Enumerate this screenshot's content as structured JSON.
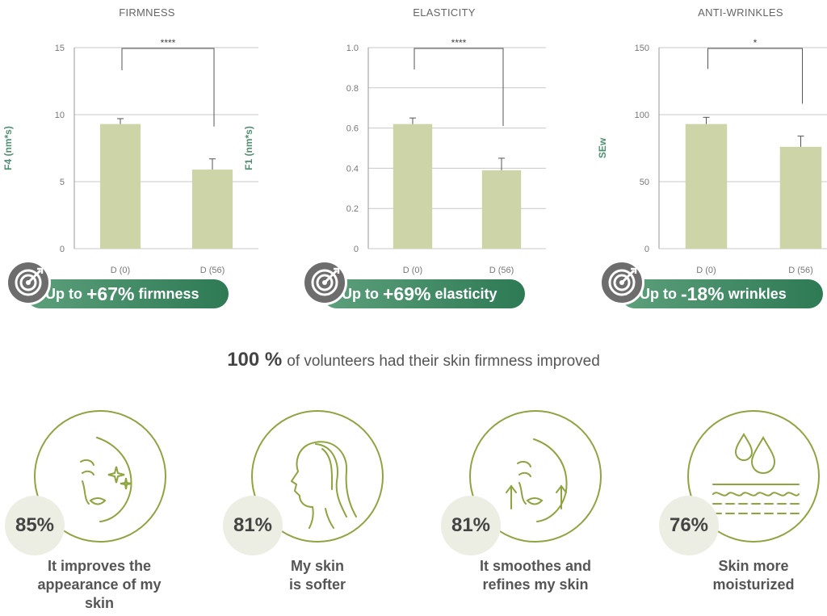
{
  "chart_data": [
    {
      "type": "bar",
      "title": "FIRMNESS",
      "ylabel": "F4 (nm*s)",
      "categories": [
        "D (0)",
        "D (56)"
      ],
      "values": [
        9.3,
        5.9
      ],
      "errors": [
        0.4,
        0.8
      ],
      "ylim": [
        0,
        15
      ],
      "yticks": [
        0,
        5,
        10,
        15
      ],
      "ytick_labels": [
        "0",
        "5",
        "10",
        "15"
      ],
      "significance": "****",
      "grid": true
    },
    {
      "type": "bar",
      "title": "ELASTICITY",
      "ylabel": "F1 (nm*s)",
      "categories": [
        "D (0)",
        "D (56)"
      ],
      "values": [
        0.62,
        0.39
      ],
      "errors": [
        0.03,
        0.06
      ],
      "ylim": [
        0,
        1.0
      ],
      "yticks": [
        0,
        0.2,
        0.4,
        0.6,
        0.8,
        1.0
      ],
      "ytick_labels": [
        "0",
        "0.2",
        "0.4",
        "0.6",
        "0.8",
        "1.0"
      ],
      "significance": "****",
      "grid": true
    },
    {
      "type": "bar",
      "title": "ANTI-WRINKLES",
      "ylabel": "SEw",
      "categories": [
        "D (0)",
        "D (56)"
      ],
      "values": [
        93,
        76
      ],
      "errors": [
        5,
        8
      ],
      "ylim": [
        0,
        150
      ],
      "yticks": [
        0,
        50,
        100,
        150
      ],
      "ytick_labels": [
        "0",
        "50",
        "100",
        "150"
      ],
      "significance": "*",
      "grid": true
    }
  ],
  "claims": [
    {
      "prefix": "Up to",
      "value": "+67%",
      "suffix": "firmness"
    },
    {
      "prefix": "Up to",
      "value": "+69%",
      "suffix": "elasticity"
    },
    {
      "prefix": "Up to",
      "value": "-18%",
      "suffix": "wrinkles"
    }
  ],
  "headline": {
    "percent": "100 %",
    "text": "of volunteers had their skin firmness improved"
  },
  "stats": [
    {
      "percent": "85%",
      "line1": "It improves the",
      "line2": "appearance of my",
      "line3": "skin",
      "icon": "face-sparkle-icon"
    },
    {
      "percent": "81%",
      "line1": "My skin",
      "line2": "is softer",
      "line3": "",
      "icon": "hair-profile-icon"
    },
    {
      "percent": "81%",
      "line1": "It smoothes and",
      "line2": "refines my skin",
      "line3": "",
      "icon": "face-lift-icon"
    },
    {
      "percent": "76%",
      "line1": "Skin more",
      "line2": "moisturized",
      "line3": "",
      "icon": "water-drops-icon"
    }
  ],
  "colors": {
    "bar": "#cdd4a8",
    "accent_green": "#4f8f70",
    "circle_outline": "#8ea440",
    "claim_start": "#5da07c",
    "claim_end": "#2d7a54"
  }
}
